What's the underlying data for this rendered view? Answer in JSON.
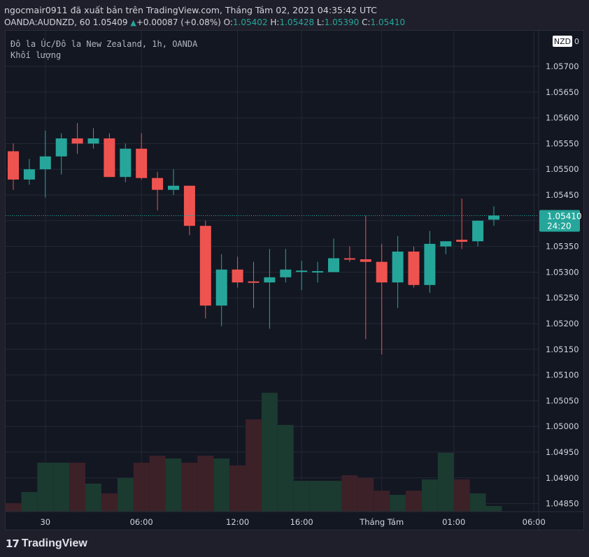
{
  "header": {
    "publish_line": "ngocmair0911 đã xuất bản trên TradingView.com, Tháng Tám 02, 2021 04:35:42 UTC",
    "symbol": "OANDA:AUDNZD, 60",
    "last": "1.05409",
    "change": "+0.00087 (+0.08%)",
    "o_label": "O:",
    "o_value": "1.05402",
    "h_label": "H:",
    "h_value": "1.05428",
    "l_label": "L:",
    "l_value": "1.05390",
    "c_label": "C:",
    "c_value": "1.05410"
  },
  "legend": {
    "title": "Đô la Úc/Đô la New Zealand, 1h, OANDA",
    "volume_label": "Khối lượng"
  },
  "price_scale": {
    "currency": "NZD",
    "currency_suffix": "0",
    "current_price": "1.05410",
    "countdown": "24:20"
  },
  "colors": {
    "up": "#26a69a",
    "down": "#ef5350",
    "vol_up": "#1b3a30",
    "vol_down": "#3c2128"
  },
  "logo": {
    "text": "TradingView"
  },
  "chart_data": {
    "type": "candlestick",
    "y_ticks": [
      "1.05700",
      "1.05650",
      "1.05600",
      "1.05550",
      "1.05500",
      "1.05450",
      "1.05350",
      "1.05300",
      "1.05250",
      "1.05200",
      "1.05150",
      "1.05100",
      "1.05050",
      "1.05000",
      "1.04950",
      "1.04900",
      "1.04850"
    ],
    "x_ticks": [
      "30",
      "06:00",
      "12:00",
      "16:00",
      "Tháng Tám",
      "01:00",
      "06:00"
    ],
    "candles": [
      {
        "o": 1.05535,
        "h": 1.0555,
        "l": 1.0546,
        "c": 1.0548
      },
      {
        "o": 1.0548,
        "h": 1.0552,
        "l": 1.0547,
        "c": 1.055
      },
      {
        "o": 1.055,
        "h": 1.05575,
        "l": 1.05445,
        "c": 1.05525
      },
      {
        "o": 1.05525,
        "h": 1.0557,
        "l": 1.0549,
        "c": 1.0556
      },
      {
        "o": 1.0556,
        "h": 1.0559,
        "l": 1.0553,
        "c": 1.0555
      },
      {
        "o": 1.0555,
        "h": 1.0558,
        "l": 1.0554,
        "c": 1.0556
      },
      {
        "o": 1.0556,
        "h": 1.0557,
        "l": 1.05485,
        "c": 1.05485
      },
      {
        "o": 1.05485,
        "h": 1.0555,
        "l": 1.05475,
        "c": 1.0554
      },
      {
        "o": 1.0554,
        "h": 1.0557,
        "l": 1.0548,
        "c": 1.05483
      },
      {
        "o": 1.05483,
        "h": 1.05495,
        "l": 1.0542,
        "c": 1.0546
      },
      {
        "o": 1.0546,
        "h": 1.055,
        "l": 1.0545,
        "c": 1.05468
      },
      {
        "o": 1.05468,
        "h": 1.05468,
        "l": 1.05372,
        "c": 1.0539
      },
      {
        "o": 1.0539,
        "h": 1.054,
        "l": 1.0521,
        "c": 1.05235
      },
      {
        "o": 1.05235,
        "h": 1.05335,
        "l": 1.05195,
        "c": 1.05305
      },
      {
        "o": 1.05305,
        "h": 1.0533,
        "l": 1.0527,
        "c": 1.0528
      },
      {
        "o": 1.05282,
        "h": 1.0532,
        "l": 1.0523,
        "c": 1.0528
      },
      {
        "o": 1.0528,
        "h": 1.05345,
        "l": 1.0519,
        "c": 1.0529
      },
      {
        "o": 1.0529,
        "h": 1.05345,
        "l": 1.0528,
        "c": 1.05305
      },
      {
        "o": 1.05303,
        "h": 1.05322,
        "l": 1.05265,
        "c": 1.05303
      },
      {
        "o": 1.05302,
        "h": 1.0532,
        "l": 1.0528,
        "c": 1.05302
      },
      {
        "o": 1.053,
        "h": 1.05365,
        "l": 1.053,
        "c": 1.05327
      },
      {
        "o": 1.05327,
        "h": 1.0535,
        "l": 1.0532,
        "c": 1.05325
      },
      {
        "o": 1.05325,
        "h": 1.0541,
        "l": 1.0517,
        "c": 1.0532
      },
      {
        "o": 1.0532,
        "h": 1.05355,
        "l": 1.0514,
        "c": 1.0528
      },
      {
        "o": 1.0528,
        "h": 1.0537,
        "l": 1.0523,
        "c": 1.0534
      },
      {
        "o": 1.0534,
        "h": 1.0535,
        "l": 1.0527,
        "c": 1.05275
      },
      {
        "o": 1.05275,
        "h": 1.0538,
        "l": 1.0526,
        "c": 1.05355
      },
      {
        "o": 1.0535,
        "h": 1.0536,
        "l": 1.05335,
        "c": 1.0536
      },
      {
        "o": 1.05363,
        "h": 1.05443,
        "l": 1.05345,
        "c": 1.05359
      },
      {
        "o": 1.0536,
        "h": 1.054,
        "l": 1.0535,
        "c": 1.054
      },
      {
        "o": 1.05402,
        "h": 1.05428,
        "l": 1.0539,
        "c": 1.0541
      }
    ],
    "volume": [
      0.06,
      0.14,
      0.35,
      0.35,
      0.35,
      0.2,
      0.13,
      0.24,
      0.35,
      0.4,
      0.38,
      0.35,
      0.4,
      0.38,
      0.33,
      0.66,
      0.85,
      0.62,
      0.22,
      0.22,
      0.22,
      0.26,
      0.24,
      0.15,
      0.12,
      0.15,
      0.23,
      0.42,
      0.23,
      0.13,
      0.04
    ]
  }
}
